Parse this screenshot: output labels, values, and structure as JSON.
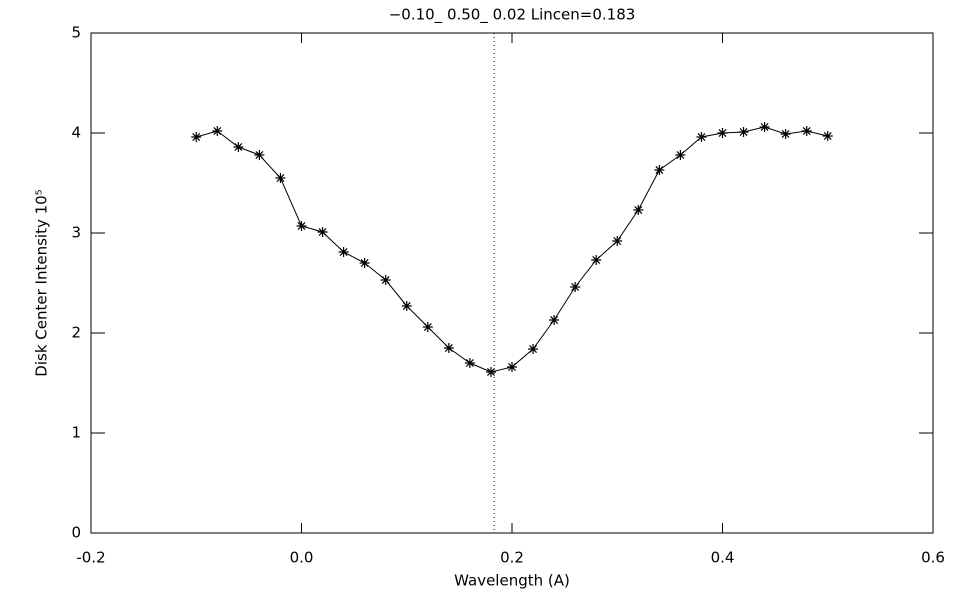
{
  "chart_data": {
    "type": "line",
    "title": "−0.10_ 0.50_ 0.02   Lincen=0.183",
    "x_label": "Wavelength (A)",
    "y_label": "Disk Center Intensity 10⁵",
    "x": [
      -0.1,
      -0.08,
      -0.06,
      -0.04,
      -0.02,
      0.0,
      0.02,
      0.04,
      0.06,
      0.08,
      0.1,
      0.12,
      0.14,
      0.16,
      0.18,
      0.2,
      0.22,
      0.24,
      0.26,
      0.28,
      0.3,
      0.32,
      0.34,
      0.36,
      0.38,
      0.4,
      0.42,
      0.44,
      0.46,
      0.48,
      0.5
    ],
    "series": [
      {
        "color": "#000000",
        "marker": "asterisk",
        "values": [
          3.96,
          4.02,
          3.86,
          3.78,
          3.55,
          3.07,
          3.01,
          2.81,
          2.7,
          2.53,
          2.27,
          2.06,
          1.85,
          1.7,
          1.61,
          1.66,
          1.84,
          2.13,
          2.46,
          2.73,
          2.92,
          3.23,
          3.63,
          3.78,
          3.96,
          4.0,
          4.01,
          4.06,
          3.99,
          4.02,
          3.97
        ]
      }
    ],
    "vline": 0.183,
    "xlim": [
      -0.2,
      0.6
    ],
    "xticks": [
      -0.2,
      {
        "value": 0,
        "label": "0.0"
      },
      0.2,
      0.4,
      0.6
    ],
    "ylim": [
      0,
      5
    ],
    "yticks": [
      0,
      1,
      2,
      3,
      4,
      5
    ],
    "grid": false
  }
}
